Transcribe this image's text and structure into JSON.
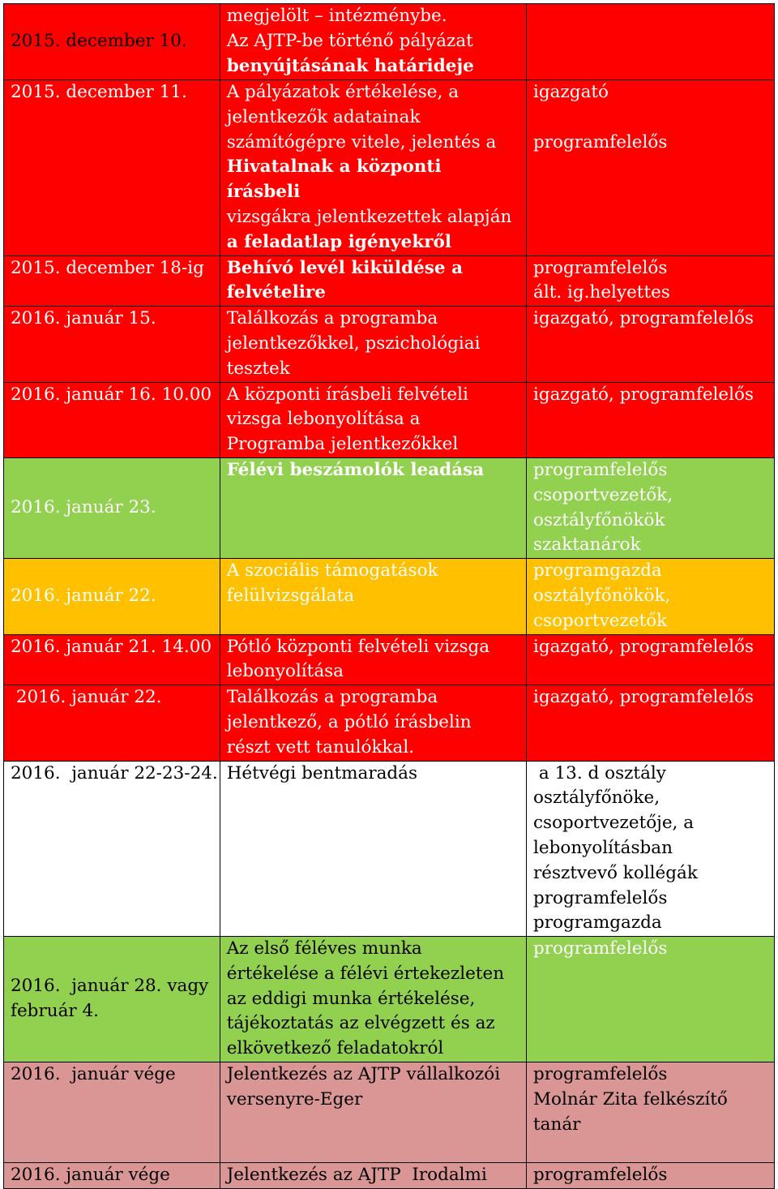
{
  "rows": [
    {
      "date": [
        "",
        "2015. december 10."
      ],
      "event": [
        "megjelölt – intézménybe.",
        "Az AJTP-be történő pályázat",
        "benyújtásának határideje"
      ],
      "resp": []
    },
    {
      "date": [
        "2015. december 11."
      ],
      "event": [
        "A pályázatok értékelése, a",
        "jelentkezők adatainak",
        "számítógépre vitele, jelentés a",
        "Hivatalnak a központi írásbeli",
        "vizsgákra jelentkezettek alapján",
        "a feladatlap igényekről"
      ],
      "resp": [
        "igazgató",
        "",
        "",
        "programfelelős"
      ]
    },
    {
      "date": [
        "2015. december 18-ig"
      ],
      "event": [
        "Behívó levél kiküldése a",
        "felvételire"
      ],
      "resp": [
        "programfelelős",
        "ált. ig.helyettes"
      ]
    },
    {
      "date": [
        "2016. január 15."
      ],
      "event": [
        "Találkozás a programba",
        "jelentkezőkkel, pszichológiai",
        "tesztek"
      ],
      "resp": [
        "igazgató, programfelelős"
      ]
    },
    {
      "date": [
        "2016. január 16. 10.00"
      ],
      "event": [
        "A központi írásbeli felvételi",
        "vizsga lebonyolítása a",
        "Programba jelentkezőkkel"
      ],
      "resp": [
        "igazgató, programfelelős"
      ]
    },
    {
      "date": [
        "2016. január 23."
      ],
      "event": [
        "Félévi beszámolók leadása"
      ],
      "resp": [
        "programfelelős",
        "csoportvezetők,",
        "osztályfőnökök",
        "szaktanárok"
      ]
    },
    {
      "date": [
        "2016.  január 22."
      ],
      "event": [
        "A szociális támogatások",
        "felülvizsgálata"
      ],
      "resp": [
        "programgazda",
        "osztályfőnökök,",
        "csoportvezetők"
      ]
    },
    {
      "date": [
        "2016. január 21. 14.00"
      ],
      "event": [
        "Pótló központi felvételi vizsga",
        "lebonyolítása"
      ],
      "resp": [
        "igazgató, programfelelős"
      ]
    },
    {
      "date": [
        " 2016. január 22."
      ],
      "event": [
        "Találkozás a programba",
        "jelentkező, a pótló írásbelin",
        "részt vett tanulókkal."
      ],
      "resp": [
        "igazgató, programfelelős"
      ]
    },
    {
      "date": [
        "2016.  január 22-23-24."
      ],
      "event": [
        "Hétvégi bentmaradás"
      ],
      "resp": [
        " a 13. d osztály",
        "osztályfőnöke,",
        "csoportvezetője, a",
        "lebonyolításban",
        "résztvevő kollégák",
        "programfelelős",
        "programgazda"
      ]
    },
    {
      "date": [
        "2016.  január 28. vagy",
        "február 4."
      ],
      "event": [
        "Az első féléves munka",
        "értékelése a félévi értekezleten",
        "az eddigi munka értékelése,",
        "tájékoztatás az elvégzett és az",
        "elkövetkező feladatokról"
      ],
      "resp": [
        "programfelelős"
      ]
    },
    {
      "date": [
        "2016.  január vége"
      ],
      "event": [
        "Jelentkezés az AJTP vállalkozói",
        "versenyre-Eger"
      ],
      "resp": [
        "programfelelős",
        "Molnár Zita felkészítő",
        "tanár"
      ]
    },
    {
      "date": [
        "2016. január vége"
      ],
      "event": [
        "Jelentkezés az AJTP  Irodalmi"
      ],
      "resp": [
        "programfelelős"
      ]
    }
  ]
}
